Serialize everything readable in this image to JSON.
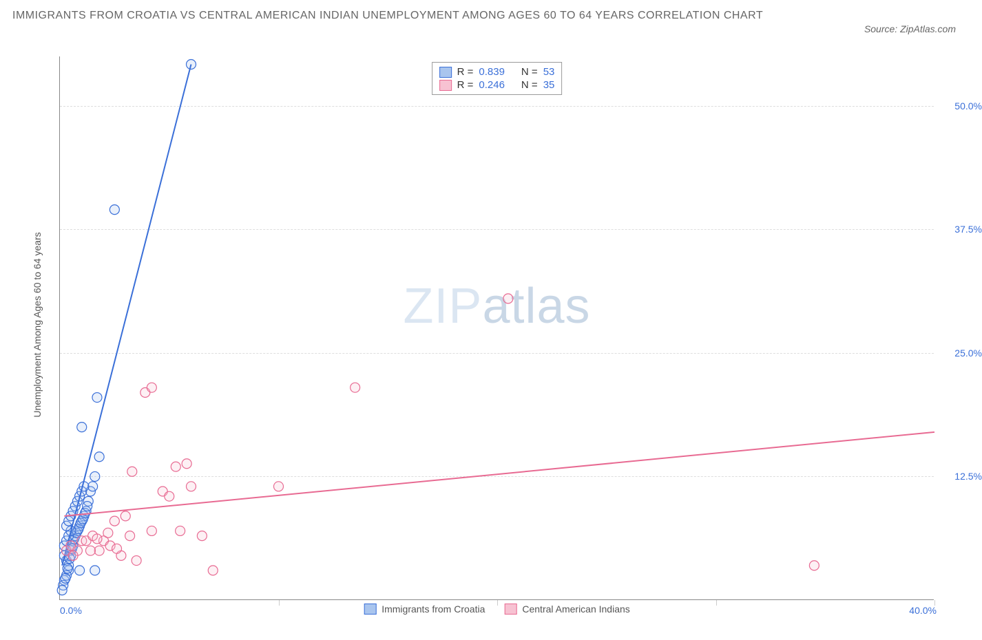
{
  "title": "IMMIGRANTS FROM CROATIA VS CENTRAL AMERICAN INDIAN UNEMPLOYMENT AMONG AGES 60 TO 64 YEARS CORRELATION CHART",
  "source_label": "Source: ZipAtlas.com",
  "ylabel": "Unemployment Among Ages 60 to 64 years",
  "watermark": {
    "z": "ZIP",
    "a": "atlas"
  },
  "chart": {
    "type": "scatter",
    "background_color": "#ffffff",
    "grid_color": "#dddddd",
    "axis_color": "#888888",
    "xlim": [
      0,
      40
    ],
    "ylim": [
      0,
      55
    ],
    "xticks": [
      0,
      10,
      20,
      30,
      40
    ],
    "xtick_labels": [
      "0.0%",
      "",
      "",
      "",
      "40.0%"
    ],
    "yticks": [
      12.5,
      25.0,
      37.5,
      50.0
    ],
    "ytick_labels": [
      "12.5%",
      "25.0%",
      "37.5%",
      "50.0%"
    ],
    "tick_color": "#3a6fd8",
    "series": [
      {
        "key": "croatia",
        "label": "Immigrants from Croatia",
        "color_stroke": "#3a6fd8",
        "color_fill": "#a9c5ee",
        "R": "0.839",
        "N": "53",
        "trend": {
          "x1": 0.1,
          "y1": 3.5,
          "x2": 6.0,
          "y2": 54.2
        },
        "points": [
          {
            "x": 0.2,
            "y": 2.0
          },
          {
            "x": 0.4,
            "y": 3.0
          },
          {
            "x": 0.3,
            "y": 4.0
          },
          {
            "x": 0.5,
            "y": 5.0
          },
          {
            "x": 0.6,
            "y": 6.0
          },
          {
            "x": 0.7,
            "y": 6.5
          },
          {
            "x": 0.8,
            "y": 7.0
          },
          {
            "x": 0.9,
            "y": 7.5
          },
          {
            "x": 1.0,
            "y": 8.0
          },
          {
            "x": 1.1,
            "y": 8.5
          },
          {
            "x": 1.2,
            "y": 9.0
          },
          {
            "x": 1.3,
            "y": 10.0
          },
          {
            "x": 1.4,
            "y": 11.0
          },
          {
            "x": 1.5,
            "y": 11.5
          },
          {
            "x": 1.6,
            "y": 12.5
          },
          {
            "x": 1.8,
            "y": 14.5
          },
          {
            "x": 1.0,
            "y": 17.5
          },
          {
            "x": 1.7,
            "y": 20.5
          },
          {
            "x": 2.5,
            "y": 39.5
          },
          {
            "x": 6.0,
            "y": 54.2
          },
          {
            "x": 0.3,
            "y": 2.5
          },
          {
            "x": 0.4,
            "y": 3.5
          },
          {
            "x": 0.5,
            "y": 4.5
          },
          {
            "x": 0.6,
            "y": 5.5
          },
          {
            "x": 0.15,
            "y": 1.5
          },
          {
            "x": 0.25,
            "y": 2.2
          },
          {
            "x": 0.35,
            "y": 3.2
          },
          {
            "x": 0.45,
            "y": 4.2
          },
          {
            "x": 0.55,
            "y": 5.2
          },
          {
            "x": 0.65,
            "y": 6.2
          },
          {
            "x": 0.75,
            "y": 6.8
          },
          {
            "x": 0.85,
            "y": 7.2
          },
          {
            "x": 0.95,
            "y": 7.8
          },
          {
            "x": 1.05,
            "y": 8.2
          },
          {
            "x": 1.15,
            "y": 8.8
          },
          {
            "x": 1.25,
            "y": 9.5
          },
          {
            "x": 0.2,
            "y": 5.5
          },
          {
            "x": 0.3,
            "y": 6.0
          },
          {
            "x": 0.4,
            "y": 6.5
          },
          {
            "x": 0.5,
            "y": 7.0
          },
          {
            "x": 0.9,
            "y": 3.0
          },
          {
            "x": 1.6,
            "y": 3.0
          },
          {
            "x": 0.1,
            "y": 1.0
          },
          {
            "x": 0.2,
            "y": 4.5
          },
          {
            "x": 0.3,
            "y": 7.5
          },
          {
            "x": 0.4,
            "y": 8.0
          },
          {
            "x": 0.5,
            "y": 8.5
          },
          {
            "x": 0.6,
            "y": 9.0
          },
          {
            "x": 0.7,
            "y": 9.5
          },
          {
            "x": 0.8,
            "y": 10.0
          },
          {
            "x": 0.9,
            "y": 10.5
          },
          {
            "x": 1.0,
            "y": 11.0
          },
          {
            "x": 1.1,
            "y": 11.5
          }
        ]
      },
      {
        "key": "cai",
        "label": "Central American Indians",
        "color_stroke": "#e86a92",
        "color_fill": "#f7c2d2",
        "R": "0.246",
        "N": "35",
        "trend": {
          "x1": 0.2,
          "y1": 8.5,
          "x2": 40.0,
          "y2": 17.0
        },
        "points": [
          {
            "x": 0.3,
            "y": 5.0
          },
          {
            "x": 0.5,
            "y": 5.5
          },
          {
            "x": 0.8,
            "y": 5.0
          },
          {
            "x": 1.0,
            "y": 6.0
          },
          {
            "x": 1.2,
            "y": 6.0
          },
          {
            "x": 1.5,
            "y": 6.5
          },
          {
            "x": 1.8,
            "y": 5.0
          },
          {
            "x": 2.0,
            "y": 6.0
          },
          {
            "x": 2.3,
            "y": 5.5
          },
          {
            "x": 2.5,
            "y": 8.0
          },
          {
            "x": 2.8,
            "y": 4.5
          },
          {
            "x": 3.0,
            "y": 8.5
          },
          {
            "x": 3.3,
            "y": 13.0
          },
          {
            "x": 3.5,
            "y": 4.0
          },
          {
            "x": 3.9,
            "y": 21.0
          },
          {
            "x": 4.2,
            "y": 7.0
          },
          {
            "x": 4.2,
            "y": 21.5
          },
          {
            "x": 4.7,
            "y": 11.0
          },
          {
            "x": 5.0,
            "y": 10.5
          },
          {
            "x": 5.3,
            "y": 13.5
          },
          {
            "x": 5.5,
            "y": 7.0
          },
          {
            "x": 5.8,
            "y": 13.8
          },
          {
            "x": 6.0,
            "y": 11.5
          },
          {
            "x": 6.5,
            "y": 6.5
          },
          {
            "x": 7.0,
            "y": 3.0
          },
          {
            "x": 10.0,
            "y": 11.5
          },
          {
            "x": 13.5,
            "y": 21.5
          },
          {
            "x": 20.5,
            "y": 30.5
          },
          {
            "x": 34.5,
            "y": 3.5
          },
          {
            "x": 0.6,
            "y": 4.5
          },
          {
            "x": 1.4,
            "y": 5.0
          },
          {
            "x": 1.7,
            "y": 6.2
          },
          {
            "x": 2.2,
            "y": 6.8
          },
          {
            "x": 2.6,
            "y": 5.2
          },
          {
            "x": 3.2,
            "y": 6.5
          }
        ]
      }
    ]
  },
  "legend_stats": {
    "r_label": "R =",
    "n_label": "N ="
  }
}
